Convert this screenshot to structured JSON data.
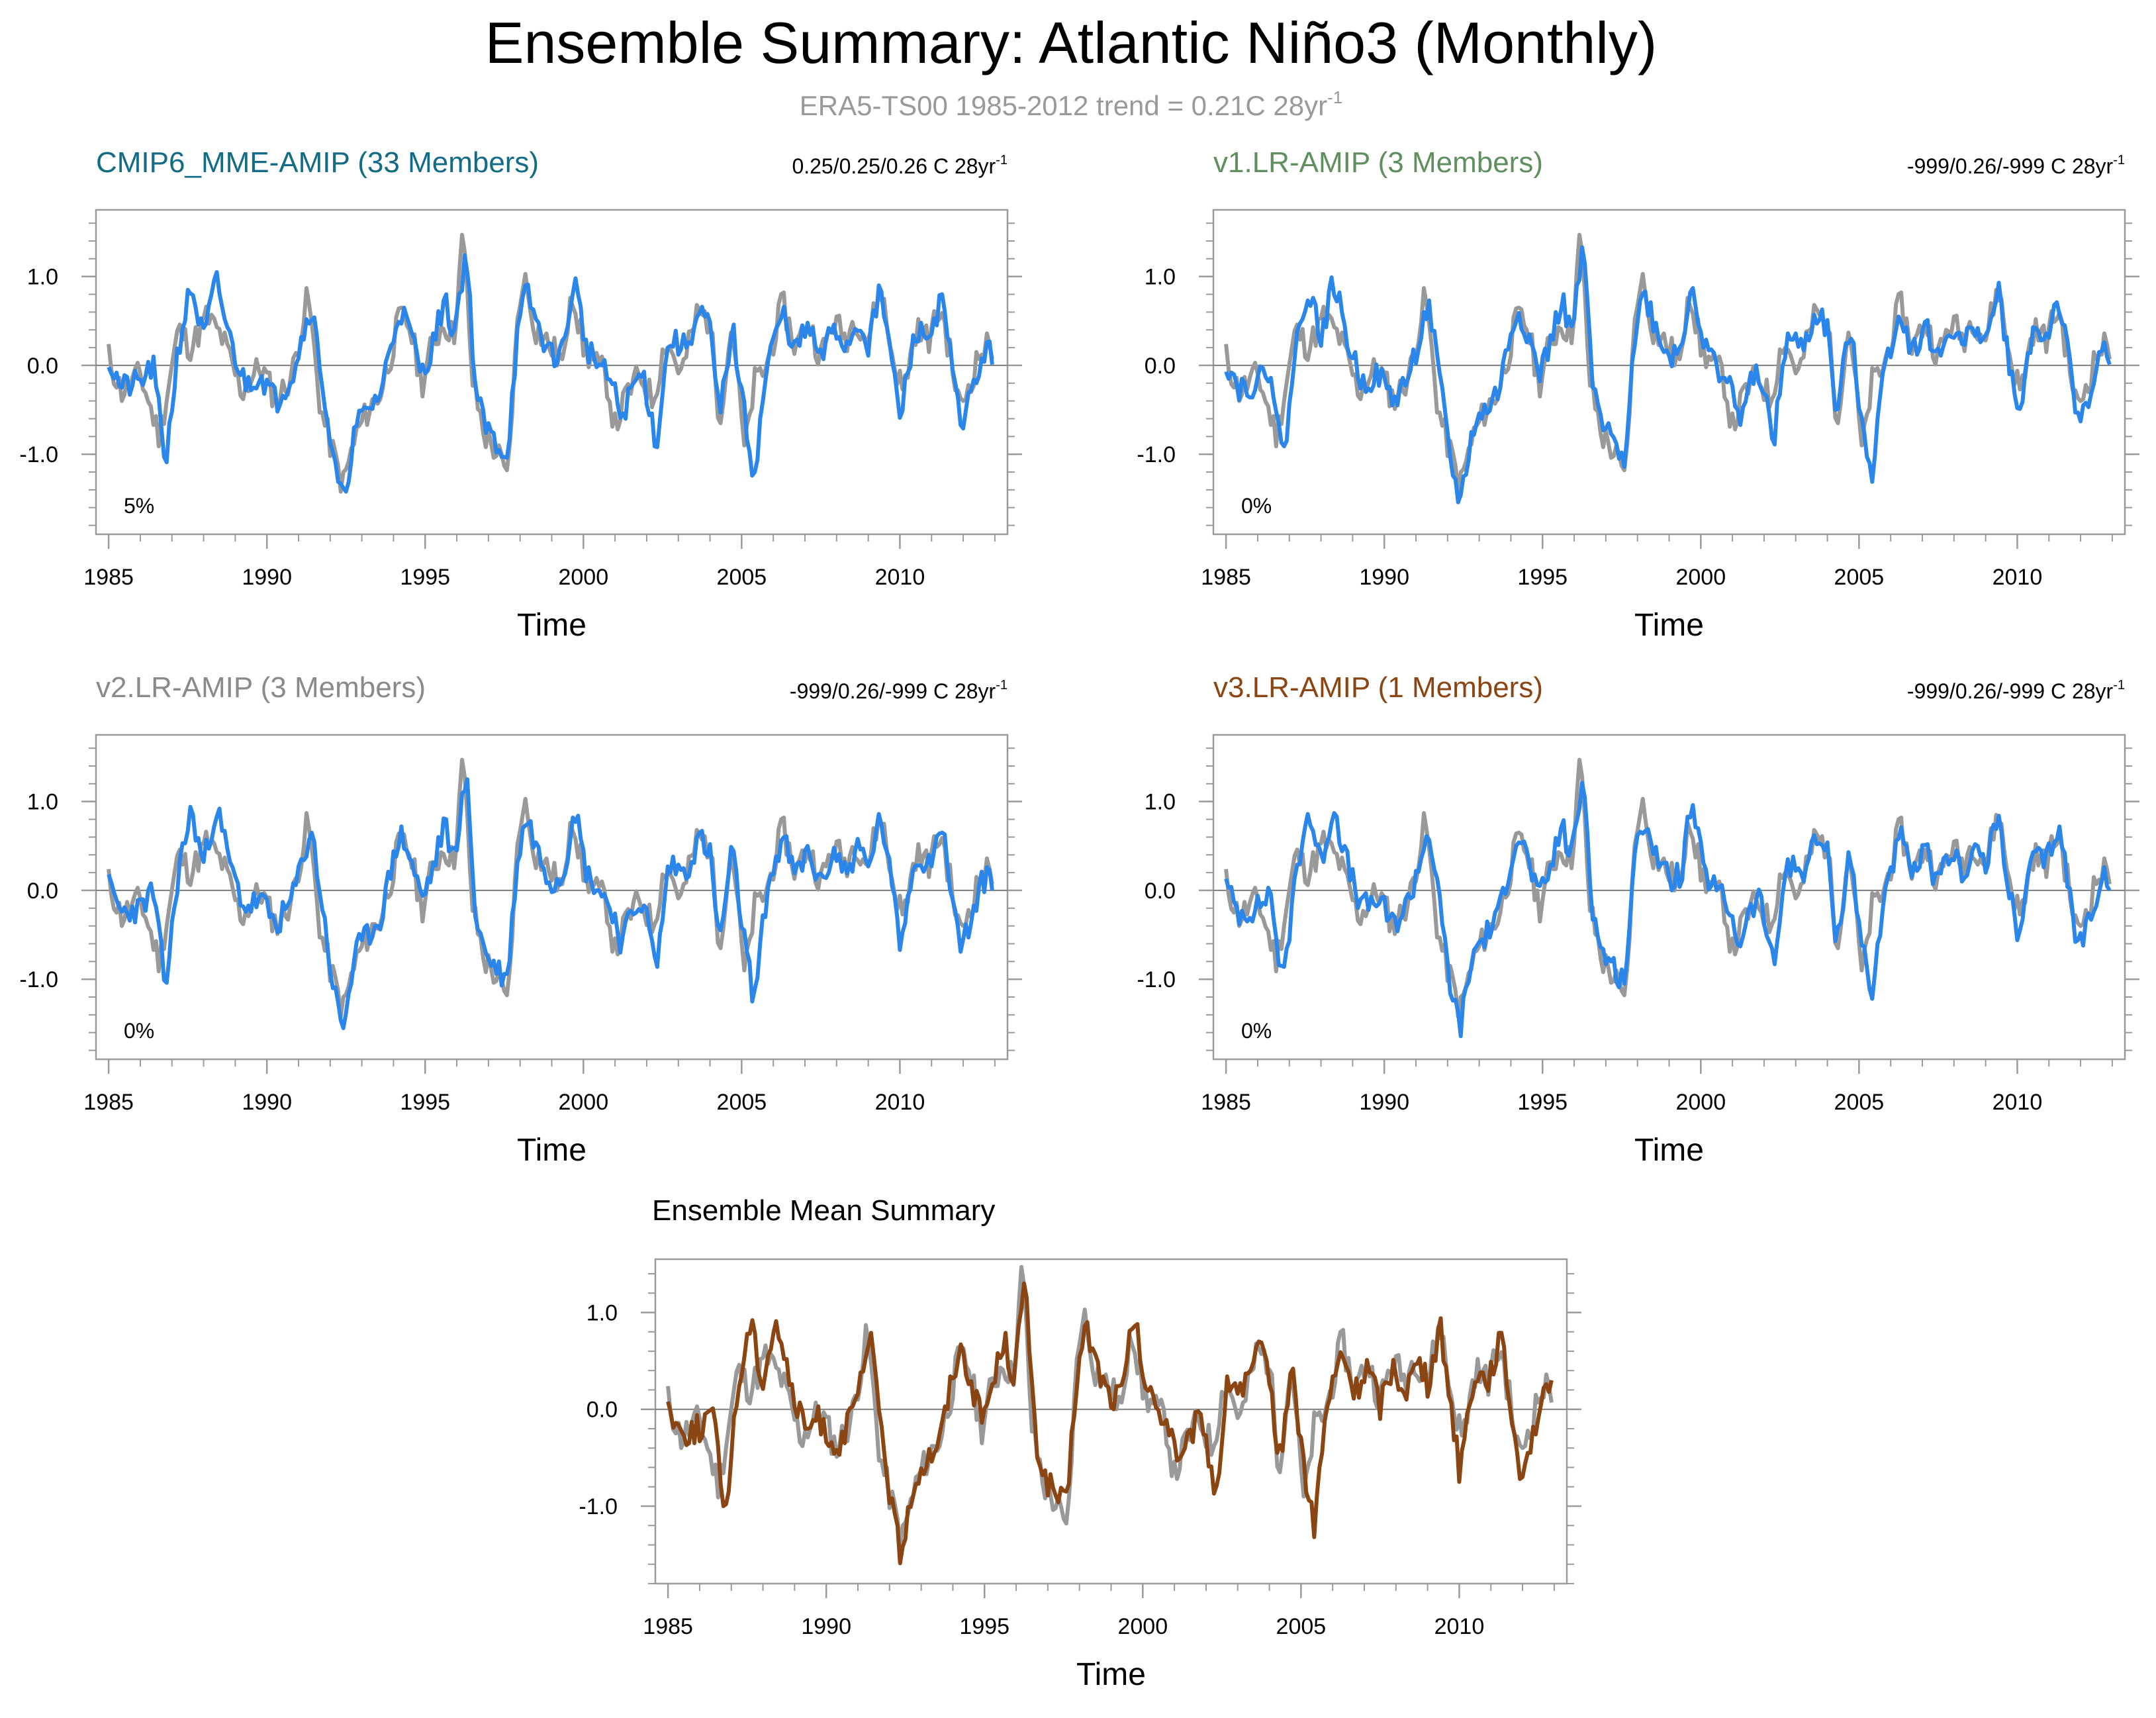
{
  "title": "Ensemble Summary: Atlantic Niño3 (Monthly)",
  "subtitle": {
    "text": "ERA5-TS00 1985-2012 trend = 0.21C 28yr",
    "superscript": "-1"
  },
  "colors": {
    "observed": "#999999",
    "model_line": "#2a86ea",
    "ensemble_mean": "#8b4513",
    "title_cmip6": "#136b86",
    "title_v1": "#5f8f5f",
    "title_v2": "#8a8a8a",
    "title_v3": "#8b4513",
    "frame": "#9a9a9a",
    "text": "#000000"
  },
  "chart_data": [
    {
      "type": "line",
      "name": "cmip6",
      "title": "CMIP6_MME-AMIP (33 Members)",
      "stat": "0.25/0.25/0.26 C 28yr",
      "stat_sup": "-1",
      "percent": "5%",
      "xlabel": "Time",
      "ylabel": "",
      "xlim": [
        1984.6,
        2013.4
      ],
      "ylim": [
        -1.9,
        1.75
      ],
      "xticks": [
        "1985",
        "1990",
        "1995",
        "2000",
        "2005",
        "2010"
      ],
      "yticks": [
        "1.0",
        "0.0",
        "-1.0"
      ],
      "model_color": "#2a86ea",
      "seed": 1
    },
    {
      "type": "line",
      "name": "v1",
      "title": "v1.LR-AMIP (3 Members)",
      "stat": "-999/0.26/-999 C 28yr",
      "stat_sup": "-1",
      "percent": "0%",
      "xlabel": "Time",
      "ylabel": "",
      "xlim": [
        1984.6,
        2013.4
      ],
      "ylim": [
        -1.9,
        1.75
      ],
      "xticks": [
        "1985",
        "1990",
        "1995",
        "2000",
        "2005",
        "2010"
      ],
      "yticks": [
        "1.0",
        "0.0",
        "-1.0"
      ],
      "model_color": "#2a86ea",
      "seed": 2
    },
    {
      "type": "line",
      "name": "v2",
      "title": "v2.LR-AMIP (3 Members)",
      "stat": "-999/0.26/-999 C 28yr",
      "stat_sup": "-1",
      "percent": "0%",
      "xlabel": "Time",
      "ylabel": "",
      "xlim": [
        1984.6,
        2013.4
      ],
      "ylim": [
        -1.9,
        1.75
      ],
      "xticks": [
        "1985",
        "1990",
        "1995",
        "2000",
        "2005",
        "2010"
      ],
      "yticks": [
        "1.0",
        "0.0",
        "-1.0"
      ],
      "model_color": "#2a86ea",
      "seed": 3
    },
    {
      "type": "line",
      "name": "v3",
      "title": "v3.LR-AMIP (1 Members)",
      "stat": "-999/0.26/-999 C 28yr",
      "stat_sup": "-1",
      "percent": "0%",
      "xlabel": "Time",
      "ylabel": "",
      "xlim": [
        1984.6,
        2013.4
      ],
      "ylim": [
        -1.9,
        1.75
      ],
      "xticks": [
        "1985",
        "1990",
        "1995",
        "2000",
        "2005",
        "2010"
      ],
      "yticks": [
        "1.0",
        "0.0",
        "-1.0"
      ],
      "model_color": "#2a86ea",
      "seed": 4
    },
    {
      "type": "line",
      "name": "ensemble-mean",
      "title": "Ensemble Mean Summary",
      "stat": "",
      "stat_sup": "",
      "percent": "",
      "xlabel": "Time",
      "ylabel": "",
      "xlim": [
        1984.6,
        2013.4
      ],
      "ylim": [
        -1.8,
        1.55
      ],
      "xticks": [
        "1985",
        "1990",
        "1995",
        "2000",
        "2005",
        "2010"
      ],
      "yticks": [
        "1.0",
        "0.0",
        "-1.0"
      ],
      "model_color": "#8b4513",
      "seed": 5
    }
  ],
  "series_keypoints": {
    "observed": [
      [
        1985.0,
        0.1
      ],
      [
        1985.4,
        -0.3
      ],
      [
        1986.0,
        -0.1
      ],
      [
        1986.6,
        -0.8
      ],
      [
        1987.2,
        0.4
      ],
      [
        1987.6,
        0.2
      ],
      [
        1988.1,
        0.55
      ],
      [
        1988.6,
        0.3
      ],
      [
        1989.2,
        -0.3
      ],
      [
        1989.8,
        0.0
      ],
      [
        1990.3,
        -0.4
      ],
      [
        1990.8,
        -0.1
      ],
      [
        1991.3,
        0.8
      ],
      [
        1991.7,
        -0.5
      ],
      [
        1992.1,
        -1.0
      ],
      [
        1992.4,
        -1.35
      ],
      [
        1992.8,
        -0.8
      ],
      [
        1993.2,
        -0.5
      ],
      [
        1993.6,
        -0.3
      ],
      [
        1993.9,
        0.1
      ],
      [
        1994.2,
        0.55
      ],
      [
        1994.5,
        0.45
      ],
      [
        1994.9,
        -0.2
      ],
      [
        1995.2,
        0.2
      ],
      [
        1995.6,
        0.5
      ],
      [
        1995.9,
        0.3
      ],
      [
        1996.2,
        1.5
      ],
      [
        1996.5,
        -0.2
      ],
      [
        1996.9,
        -0.8
      ],
      [
        1997.3,
        -1.0
      ],
      [
        1997.6,
        -1.3
      ],
      [
        1997.9,
        0.4
      ],
      [
        1998.1,
        1.05
      ],
      [
        1998.5,
        0.4
      ],
      [
        1999.0,
        0.2
      ],
      [
        1999.4,
        0.0
      ],
      [
        1999.6,
        0.95
      ],
      [
        2000.0,
        0.2
      ],
      [
        2000.4,
        0.0
      ],
      [
        2000.7,
        -0.1
      ],
      [
        2001.0,
        -0.7
      ],
      [
        2001.4,
        -0.3
      ],
      [
        2001.8,
        -0.1
      ],
      [
        2002.2,
        -0.4
      ],
      [
        2002.6,
        0.3
      ],
      [
        2003.1,
        -0.1
      ],
      [
        2003.6,
        0.6
      ],
      [
        2004.0,
        0.5
      ],
      [
        2004.3,
        -0.6
      ],
      [
        2004.7,
        0.5
      ],
      [
        2005.1,
        -1.0
      ],
      [
        2005.4,
        -0.2
      ],
      [
        2005.8,
        0.0
      ],
      [
        2006.3,
        0.7
      ],
      [
        2006.7,
        0.2
      ],
      [
        2007.1,
        0.5
      ],
      [
        2007.5,
        0.1
      ],
      [
        2007.9,
        0.5
      ],
      [
        2008.3,
        0.3
      ],
      [
        2008.6,
        0.55
      ],
      [
        2009.0,
        0.3
      ],
      [
        2009.4,
        0.9
      ],
      [
        2009.7,
        0.2
      ],
      [
        2010.1,
        -0.3
      ],
      [
        2010.5,
        0.4
      ],
      [
        2010.9,
        0.3
      ],
      [
        2011.3,
        0.65
      ],
      [
        2011.6,
        0.1
      ],
      [
        2011.9,
        -0.5
      ],
      [
        2012.3,
        -0.1
      ],
      [
        2012.6,
        0.2
      ],
      [
        2012.9,
        0.2
      ]
    ],
    "model": [
      [
        1985.0,
        0.05
      ],
      [
        1985.4,
        -0.25
      ],
      [
        1986.0,
        -0.2
      ],
      [
        1986.4,
        0.0
      ],
      [
        1986.8,
        -1.1
      ],
      [
        1987.2,
        0.2
      ],
      [
        1987.6,
        0.9
      ],
      [
        1988.0,
        0.3
      ],
      [
        1988.4,
        0.95
      ],
      [
        1988.9,
        0.2
      ],
      [
        1989.3,
        -0.2
      ],
      [
        1989.8,
        -0.1
      ],
      [
        1990.3,
        -0.4
      ],
      [
        1990.8,
        -0.1
      ],
      [
        1991.4,
        0.7
      ],
      [
        1991.8,
        -0.3
      ],
      [
        1992.1,
        -1.1
      ],
      [
        1992.4,
        -1.55
      ],
      [
        1992.8,
        -0.7
      ],
      [
        1993.2,
        -0.5
      ],
      [
        1993.6,
        -0.3
      ],
      [
        1993.9,
        0.2
      ],
      [
        1994.2,
        0.65
      ],
      [
        1994.5,
        0.4
      ],
      [
        1994.9,
        -0.1
      ],
      [
        1995.3,
        0.3
      ],
      [
        1995.6,
        0.75
      ],
      [
        1995.9,
        0.35
      ],
      [
        1996.3,
        1.3
      ],
      [
        1996.6,
        -0.3
      ],
      [
        1996.9,
        -0.7
      ],
      [
        1997.3,
        -0.9
      ],
      [
        1997.6,
        -1.0
      ],
      [
        1997.9,
        0.3
      ],
      [
        1998.2,
        0.85
      ],
      [
        1998.6,
        0.4
      ],
      [
        1999.0,
        0.1
      ],
      [
        1999.4,
        0.2
      ],
      [
        1999.7,
        1.0
      ],
      [
        2000.1,
        0.2
      ],
      [
        2000.5,
        0.0
      ],
      [
        2000.9,
        -0.2
      ],
      [
        2001.2,
        -0.6
      ],
      [
        2001.6,
        -0.2
      ],
      [
        2001.9,
        -0.1
      ],
      [
        2002.3,
        -0.9
      ],
      [
        2002.7,
        0.3
      ],
      [
        2003.2,
        0.2
      ],
      [
        2003.7,
        0.6
      ],
      [
        2004.0,
        0.4
      ],
      [
        2004.3,
        -0.6
      ],
      [
        2004.7,
        0.45
      ],
      [
        2005.1,
        -0.6
      ],
      [
        2005.4,
        -1.25
      ],
      [
        2005.8,
        0.0
      ],
      [
        2006.3,
        0.6
      ],
      [
        2006.7,
        0.15
      ],
      [
        2007.1,
        0.45
      ],
      [
        2007.5,
        0.05
      ],
      [
        2007.9,
        0.45
      ],
      [
        2008.3,
        0.2
      ],
      [
        2008.7,
        0.5
      ],
      [
        2009.0,
        0.25
      ],
      [
        2009.4,
        0.85
      ],
      [
        2009.7,
        0.15
      ],
      [
        2010.0,
        -0.6
      ],
      [
        2010.5,
        0.4
      ],
      [
        2010.9,
        0.3
      ],
      [
        2011.3,
        0.75
      ],
      [
        2011.6,
        0.1
      ],
      [
        2011.9,
        -0.65
      ],
      [
        2012.3,
        -0.3
      ],
      [
        2012.6,
        0.1
      ],
      [
        2012.9,
        0.15
      ]
    ]
  }
}
